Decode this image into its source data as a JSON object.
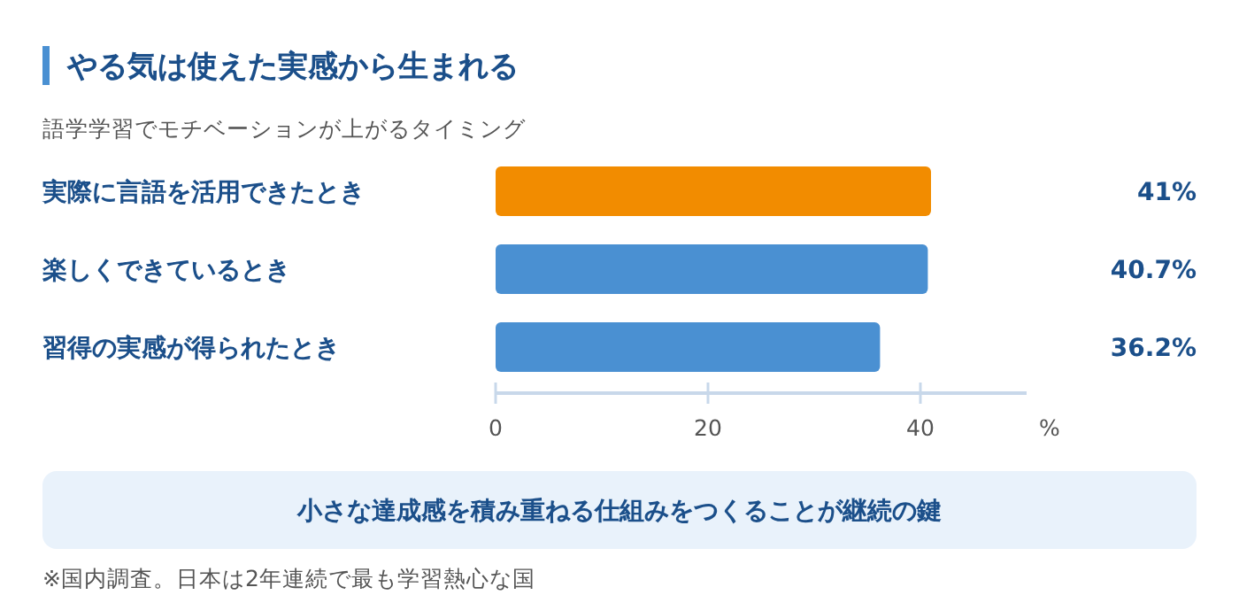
{
  "chart_data": {
    "type": "bar",
    "orientation": "horizontal",
    "title": "やる気は使えた実感から生まれる",
    "subtitle": "語学学習でモチベーションが上がるタイミング",
    "categories": [
      "実際に言語を活用できたとき",
      "楽しくできているとき",
      "習得の実感が得られたとき"
    ],
    "values": [
      41,
      40.7,
      36.2
    ],
    "colors": [
      "#f28c00",
      "#4a90d2",
      "#4a90d2"
    ],
    "value_labels": [
      "41%",
      "40.7%",
      "36.2%"
    ],
    "xlim": [
      0,
      50
    ],
    "xticks": [
      0,
      20,
      40
    ],
    "xlabel": "%",
    "annotations": [
      "小さな達成感を積み重ねる仕組みをつくることが継続の鍵",
      "※国内調査。日本は2年連続で最も学習熱心な国"
    ]
  }
}
